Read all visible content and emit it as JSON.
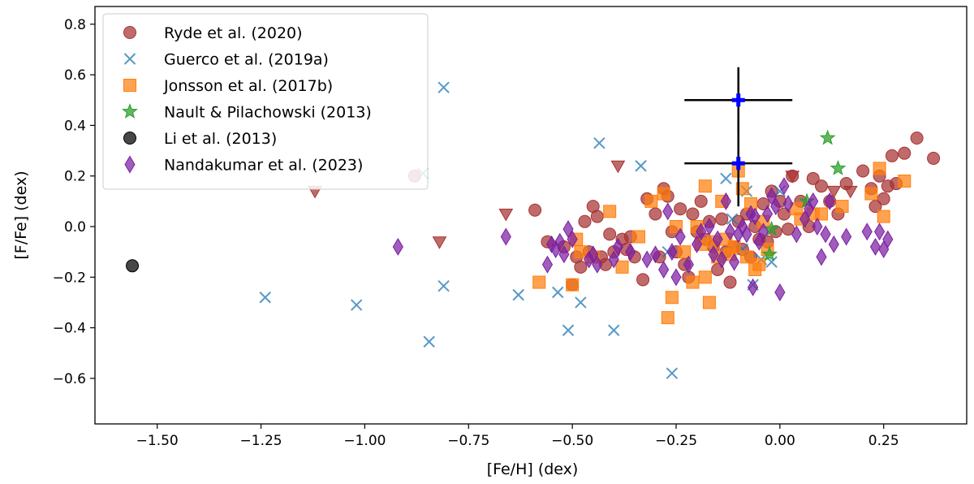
{
  "chart_data": {
    "type": "scatter",
    "xlabel": "[Fe/H] (dex)",
    "ylabel": "[F/Fe] (dex)",
    "xlim": [
      -1.65,
      0.45
    ],
    "ylim": [
      -0.78,
      0.87
    ],
    "xticks": [
      -1.5,
      -1.25,
      -1.0,
      -0.75,
      -0.5,
      -0.25,
      0.0,
      0.25
    ],
    "xtick_labels": [
      "−1.50",
      "−1.25",
      "−1.00",
      "−0.75",
      "−0.50",
      "−0.25",
      "0.00",
      "0.25"
    ],
    "yticks": [
      -0.6,
      -0.4,
      -0.2,
      0.0,
      0.2,
      0.4,
      0.6,
      0.8
    ],
    "ytick_labels": [
      "−0.6",
      "−0.4",
      "−0.2",
      "0.0",
      "0.2",
      "0.4",
      "0.6",
      "0.8"
    ],
    "legend_position": "upper-left",
    "series": [
      {
        "name": "Ryde et al. (2020)",
        "marker": "circle",
        "color": "#a83232",
        "points": [
          [
            -0.88,
            0.2
          ],
          [
            -0.59,
            0.065
          ],
          [
            -0.56,
            -0.06
          ],
          [
            -0.52,
            -0.08
          ],
          [
            -0.49,
            -0.12
          ],
          [
            -0.48,
            -0.16
          ],
          [
            -0.47,
            0.02
          ],
          [
            -0.46,
            -0.1
          ],
          [
            -0.45,
            0.08
          ],
          [
            -0.44,
            0.04
          ],
          [
            -0.43,
            -0.12
          ],
          [
            -0.42,
            -0.15
          ],
          [
            -0.41,
            -0.03
          ],
          [
            -0.4,
            -0.1
          ],
          [
            -0.38,
            -0.05
          ],
          [
            -0.37,
            -0.09
          ],
          [
            -0.36,
            -0.04
          ],
          [
            -0.35,
            -0.12
          ],
          [
            -0.33,
            -0.21
          ],
          [
            -0.32,
            0.11
          ],
          [
            -0.3,
            0.05
          ],
          [
            -0.29,
            -0.12
          ],
          [
            -0.28,
            0.15
          ],
          [
            -0.27,
            0.12
          ],
          [
            -0.26,
            -0.02
          ],
          [
            -0.25,
            -0.1
          ],
          [
            -0.24,
            0.07
          ],
          [
            -0.23,
            -0.15
          ],
          [
            -0.22,
            -0.2
          ],
          [
            -0.21,
            0.05
          ],
          [
            -0.2,
            -0.02
          ],
          [
            -0.19,
            0.1
          ],
          [
            -0.18,
            -0.05
          ],
          [
            -0.17,
            0.02
          ],
          [
            -0.16,
            -0.08
          ],
          [
            -0.15,
            -0.17
          ],
          [
            -0.14,
            0.03
          ],
          [
            -0.13,
            -0.1
          ],
          [
            -0.12,
            -0.22
          ],
          [
            -0.11,
            -0.08
          ],
          [
            -0.1,
            0.02
          ],
          [
            -0.09,
            -0.09
          ],
          [
            -0.08,
            0.05
          ],
          [
            -0.07,
            -0.12
          ],
          [
            -0.06,
            0.0
          ],
          [
            -0.05,
            -0.05
          ],
          [
            -0.04,
            0.09
          ],
          [
            -0.03,
            -0.06
          ],
          [
            -0.02,
            0.14
          ],
          [
            -0.01,
            -0.02
          ],
          [
            0.0,
            0.1
          ],
          [
            0.01,
            0.05
          ],
          [
            0.02,
            -0.01
          ],
          [
            0.03,
            0.2
          ],
          [
            0.05,
            0.1
          ],
          [
            0.07,
            0.0
          ],
          [
            0.08,
            0.19
          ],
          [
            0.1,
            0.16
          ],
          [
            0.12,
            0.1
          ],
          [
            0.14,
            0.05
          ],
          [
            0.16,
            0.17
          ],
          [
            0.2,
            0.22
          ],
          [
            0.22,
            0.15
          ],
          [
            0.23,
            0.08
          ],
          [
            0.24,
            0.2
          ],
          [
            0.25,
            0.11
          ],
          [
            0.26,
            0.16
          ],
          [
            0.27,
            0.28
          ],
          [
            0.28,
            0.17
          ],
          [
            0.3,
            0.29
          ],
          [
            0.33,
            0.35
          ],
          [
            0.37,
            0.27
          ],
          [
            -0.5,
            -0.23
          ]
        ]
      },
      {
        "name": "Guerco et al. (2019a)",
        "marker": "x",
        "color": "#1f77b4",
        "points": [
          [
            -1.24,
            -0.28
          ],
          [
            -1.02,
            -0.31
          ],
          [
            -0.86,
            0.21
          ],
          [
            -0.845,
            -0.455
          ],
          [
            -0.81,
            0.55
          ],
          [
            -0.81,
            -0.235
          ],
          [
            -0.63,
            -0.27
          ],
          [
            -0.535,
            -0.26
          ],
          [
            -0.51,
            -0.41
          ],
          [
            -0.48,
            -0.3
          ],
          [
            -0.435,
            0.33
          ],
          [
            -0.4,
            -0.41
          ],
          [
            -0.335,
            0.24
          ],
          [
            -0.26,
            -0.58
          ],
          [
            -0.27,
            -0.1
          ],
          [
            -0.13,
            0.19
          ],
          [
            -0.115,
            0.03
          ],
          [
            -0.09,
            -0.09
          ],
          [
            -0.08,
            0.14
          ],
          [
            -0.065,
            -0.23
          ],
          [
            -0.045,
            -0.13
          ],
          [
            -0.02,
            -0.14
          ],
          [
            0.0,
            0.14
          ]
        ]
      },
      {
        "name": "Jonsson et al. (2017b)",
        "marker": "square",
        "color": "#ff7f0e",
        "points": [
          [
            -0.58,
            -0.22
          ],
          [
            -0.49,
            -0.05
          ],
          [
            -0.48,
            -0.1
          ],
          [
            -0.45,
            -0.12
          ],
          [
            -0.41,
            0.06
          ],
          [
            -0.38,
            -0.16
          ],
          [
            -0.34,
            -0.04
          ],
          [
            -0.31,
            0.1
          ],
          [
            -0.28,
            0.13
          ],
          [
            -0.27,
            -0.36
          ],
          [
            -0.26,
            -0.28
          ],
          [
            -0.25,
            0.0
          ],
          [
            -0.23,
            -0.1
          ],
          [
            -0.21,
            -0.22
          ],
          [
            -0.2,
            0.0
          ],
          [
            -0.19,
            -0.07
          ],
          [
            -0.18,
            0.16
          ],
          [
            -0.18,
            -0.2
          ],
          [
            -0.17,
            -0.3
          ],
          [
            -0.16,
            -0.06
          ],
          [
            -0.15,
            -0.12
          ],
          [
            -0.14,
            0.1
          ],
          [
            -0.13,
            -0.05
          ],
          [
            -0.12,
            -0.11
          ],
          [
            -0.11,
            -0.08
          ],
          [
            -0.1,
            0.22
          ],
          [
            -0.09,
            0.15
          ],
          [
            -0.08,
            -0.12
          ],
          [
            -0.07,
            0.09
          ],
          [
            -0.06,
            -0.17
          ],
          [
            -0.05,
            -0.15
          ],
          [
            -0.04,
            0.02
          ],
          [
            -0.03,
            -0.09
          ],
          [
            0.04,
            0.07
          ],
          [
            0.05,
            0.03
          ],
          [
            0.08,
            0.05
          ],
          [
            0.1,
            0.05
          ],
          [
            0.15,
            0.08
          ],
          [
            0.22,
            0.13
          ],
          [
            0.24,
            0.23
          ],
          [
            0.25,
            0.04
          ],
          [
            0.3,
            0.18
          ],
          [
            -0.5,
            -0.23
          ]
        ]
      },
      {
        "name": "Ryde et al. (2020) upper limits",
        "legend": false,
        "marker": "triangle-down",
        "color": "#a83232",
        "points": [
          [
            -1.12,
            0.14
          ],
          [
            -0.82,
            -0.06
          ],
          [
            -0.66,
            0.05
          ],
          [
            -0.39,
            0.24
          ],
          [
            0.03,
            0.2
          ],
          [
            0.13,
            0.14
          ],
          [
            0.17,
            0.14
          ]
        ]
      },
      {
        "name": "Nault & Pilachowski (2013)",
        "marker": "star",
        "color": "#2ca02c",
        "points": [
          [
            0.115,
            0.35
          ],
          [
            0.14,
            0.23
          ],
          [
            -0.02,
            -0.01
          ],
          [
            0.065,
            0.1
          ],
          [
            -0.025,
            -0.11
          ]
        ]
      },
      {
        "name": "Li et al. (2013)",
        "marker": "circle",
        "color": "#000000",
        "points": [
          [
            -1.56,
            -0.155
          ]
        ]
      },
      {
        "name": "Nandakumar et al. (2023)",
        "marker": "diamond",
        "color": "#7b1fa2",
        "points": [
          [
            -0.92,
            -0.08
          ],
          [
            -0.66,
            -0.04
          ],
          [
            -0.56,
            -0.15
          ],
          [
            -0.55,
            -0.07
          ],
          [
            -0.54,
            -0.09
          ],
          [
            -0.53,
            -0.06
          ],
          [
            -0.52,
            -0.11
          ],
          [
            -0.51,
            -0.01
          ],
          [
            -0.5,
            -0.05
          ],
          [
            -0.46,
            -0.13
          ],
          [
            -0.45,
            -0.11
          ],
          [
            -0.44,
            -0.15
          ],
          [
            -0.4,
            -0.13
          ],
          [
            -0.39,
            -0.08
          ],
          [
            -0.36,
            -0.1
          ],
          [
            -0.32,
            -0.13
          ],
          [
            -0.3,
            -0.11
          ],
          [
            -0.28,
            -0.17
          ],
          [
            -0.27,
            0.06
          ],
          [
            -0.26,
            -0.1
          ],
          [
            -0.25,
            -0.2
          ],
          [
            -0.24,
            -0.04
          ],
          [
            -0.22,
            -0.15
          ],
          [
            -0.2,
            -0.07
          ],
          [
            -0.19,
            -0.02
          ],
          [
            -0.17,
            0.0
          ],
          [
            -0.16,
            -0.11
          ],
          [
            -0.15,
            -0.05
          ],
          [
            -0.14,
            -0.13
          ],
          [
            -0.13,
            0.1
          ],
          [
            -0.12,
            -0.02
          ],
          [
            -0.11,
            -0.14
          ],
          [
            -0.1,
            -0.03
          ],
          [
            -0.09,
            0.0
          ],
          [
            -0.08,
            -0.03
          ],
          [
            -0.07,
            0.05
          ],
          [
            -0.065,
            -0.24
          ],
          [
            -0.06,
            0.04
          ],
          [
            -0.05,
            -0.06
          ],
          [
            -0.04,
            -0.02
          ],
          [
            -0.03,
            0.05
          ],
          [
            -0.02,
            0.12
          ],
          [
            -0.01,
            0.08
          ],
          [
            0.0,
            -0.26
          ],
          [
            0.01,
            0.16
          ],
          [
            0.02,
            0.09
          ],
          [
            0.04,
            -0.03
          ],
          [
            0.06,
            0.03
          ],
          [
            0.07,
            0.07
          ],
          [
            0.08,
            0.1
          ],
          [
            0.09,
            0.0
          ],
          [
            0.1,
            -0.12
          ],
          [
            0.11,
            -0.03
          ],
          [
            0.12,
            0.1
          ],
          [
            0.13,
            -0.07
          ],
          [
            0.16,
            -0.04
          ],
          [
            0.21,
            -0.02
          ],
          [
            0.23,
            -0.08
          ],
          [
            0.24,
            -0.02
          ],
          [
            0.25,
            -0.09
          ],
          [
            0.26,
            -0.05
          ]
        ]
      }
    ],
    "error_points": {
      "color": "#0000ff",
      "points": [
        {
          "x": -0.1,
          "y": 0.5,
          "xerr": 0.13,
          "yerr": 0.13
        },
        {
          "x": -0.1,
          "y": 0.25,
          "xerr": 0.13,
          "yerr": 0.17
        }
      ]
    }
  }
}
